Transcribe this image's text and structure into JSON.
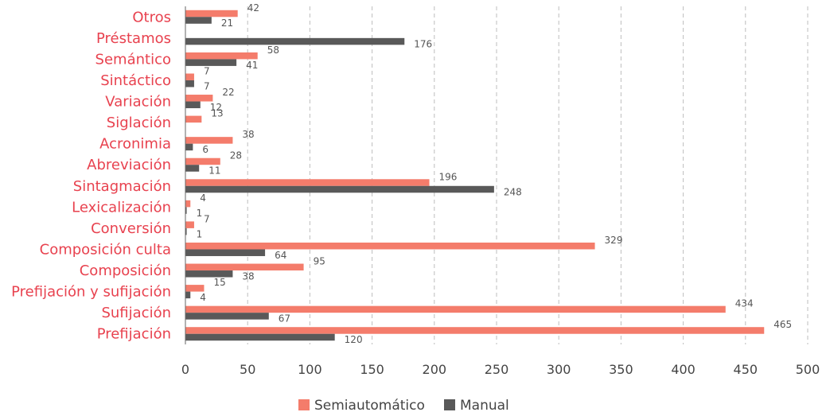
{
  "chart_data": {
    "type": "bar",
    "orientation": "horizontal",
    "categories": [
      "Otros",
      "Préstamos",
      "Semántico",
      "Sintáctico",
      "Variación",
      "Siglación",
      "Acronimia",
      "Abreviación",
      "Sintagmación",
      "Lexicalización",
      "Conversión",
      "Composición culta",
      "Composición",
      "Prefijación y sufijación",
      "Sufijación",
      "Prefijación"
    ],
    "series": [
      {
        "name": "Semiautomático",
        "color": "#f47c6b",
        "values": [
          42,
          null,
          58,
          7,
          22,
          13,
          38,
          28,
          196,
          4,
          7,
          329,
          95,
          15,
          434,
          465
        ]
      },
      {
        "name": "Manual",
        "color": "#595959",
        "values": [
          21,
          176,
          41,
          7,
          12,
          null,
          6,
          11,
          248,
          1,
          1,
          64,
          38,
          4,
          67,
          120
        ]
      }
    ],
    "xlim": [
      0,
      500
    ],
    "xticks": [
      "0",
      "50",
      "100",
      "150",
      "200",
      "250",
      "300",
      "350",
      "400",
      "450",
      "500"
    ],
    "grid": true,
    "legend": "bottom",
    "title": "",
    "xlabel": "",
    "ylabel": ""
  }
}
